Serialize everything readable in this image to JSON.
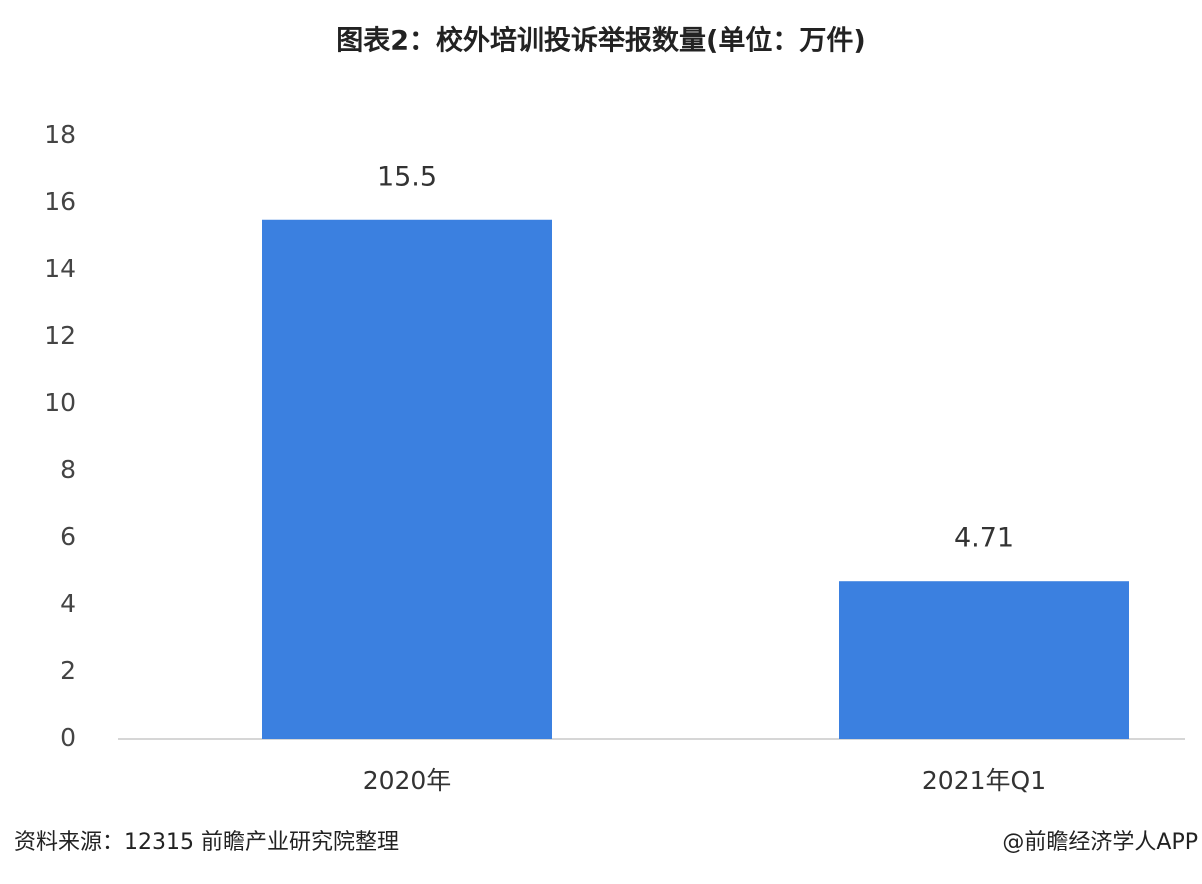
{
  "chart_data": {
    "type": "bar",
    "title": "图表2：校外培训投诉举报数量(单位：万件)",
    "categories": [
      "2020年",
      "2021年Q1"
    ],
    "values": [
      15.5,
      4.71
    ],
    "color": "#3b80e0",
    "ylim": [
      0,
      18
    ],
    "yticks": [
      0,
      2,
      4,
      6,
      8,
      10,
      12,
      14,
      16,
      18
    ],
    "grid": false,
    "source": "资料来源：12315 前瞻产业研究院整理",
    "credit": "@前瞻经济学人APP"
  }
}
